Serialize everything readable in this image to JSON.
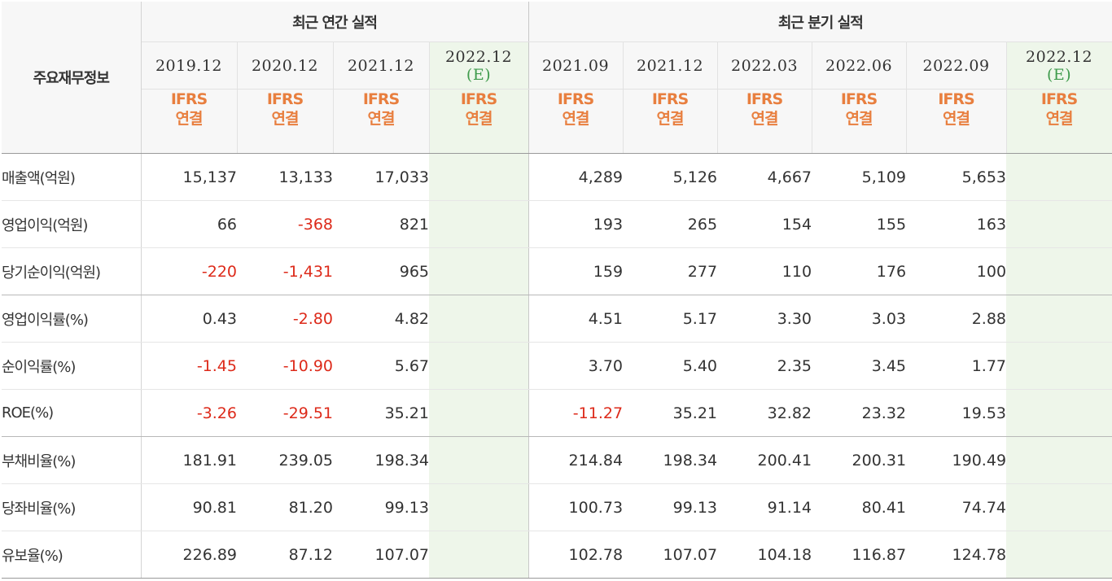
{
  "header": {
    "corner_label": "주요재무정보",
    "annual_group": "최근 연간 실적",
    "quarterly_group": "최근 분기 실적",
    "est_mark": "(E)",
    "ifrs_top": "IFRS",
    "ifrs_bottom": "연결"
  },
  "periods": [
    {
      "label": "2019.12",
      "est": false
    },
    {
      "label": "2020.12",
      "est": false
    },
    {
      "label": "2021.12",
      "est": false
    },
    {
      "label": "2022.12",
      "est": true
    },
    {
      "label": "2021.09",
      "est": false
    },
    {
      "label": "2021.12",
      "est": false
    },
    {
      "label": "2022.03",
      "est": false
    },
    {
      "label": "2022.06",
      "est": false
    },
    {
      "label": "2022.09",
      "est": false
    },
    {
      "label": "2022.12",
      "est": true
    }
  ],
  "rows": [
    {
      "label": "매출액(억원)",
      "values": [
        "15,137",
        "13,133",
        "17,033",
        "",
        "4,289",
        "5,126",
        "4,667",
        "5,109",
        "5,653",
        ""
      ]
    },
    {
      "label": "영업이익(억원)",
      "values": [
        "66",
        "-368",
        "821",
        "",
        "193",
        "265",
        "154",
        "155",
        "163",
        ""
      ]
    },
    {
      "label": "당기순이익(억원)",
      "values": [
        "-220",
        "-1,431",
        "965",
        "",
        "159",
        "277",
        "110",
        "176",
        "100",
        ""
      ]
    },
    {
      "label": "영업이익률(%)",
      "values": [
        "0.43",
        "-2.80",
        "4.82",
        "",
        "4.51",
        "5.17",
        "3.30",
        "3.03",
        "2.88",
        ""
      ]
    },
    {
      "label": "순이익률(%)",
      "values": [
        "-1.45",
        "-10.90",
        "5.67",
        "",
        "3.70",
        "5.40",
        "2.35",
        "3.45",
        "1.77",
        ""
      ]
    },
    {
      "label": "ROE(%)",
      "values": [
        "-3.26",
        "-29.51",
        "35.21",
        "",
        "-11.27",
        "35.21",
        "32.82",
        "23.32",
        "19.53",
        ""
      ]
    },
    {
      "label": "부채비율(%)",
      "values": [
        "181.91",
        "239.05",
        "198.34",
        "",
        "214.84",
        "198.34",
        "200.41",
        "200.31",
        "190.49",
        ""
      ]
    },
    {
      "label": "당좌비율(%)",
      "values": [
        "90.81",
        "81.20",
        "99.13",
        "",
        "100.73",
        "99.13",
        "91.14",
        "80.41",
        "74.74",
        ""
      ]
    },
    {
      "label": "유보율(%)",
      "values": [
        "226.89",
        "87.12",
        "107.07",
        "",
        "102.78",
        "107.07",
        "104.18",
        "116.87",
        "124.78",
        ""
      ]
    }
  ],
  "colors": {
    "negative": "#dd2a1a",
    "ifrs": "#e87f3f",
    "estimate_bg": "#eef6ea",
    "estimate_mark": "#3f9b4c"
  }
}
